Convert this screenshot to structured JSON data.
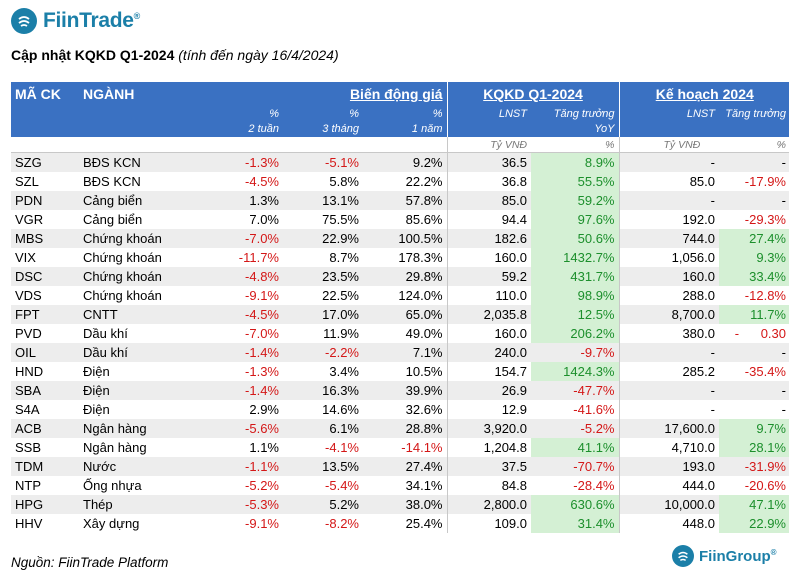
{
  "brand": {
    "name": "FiinTrade",
    "reg": "®",
    "footer_name": "FiinGroup",
    "footer_reg": "®"
  },
  "title": {
    "bold": "Cập nhật KQKD Q1-2024",
    "italic": "(tính đến ngày 16/4/2024)"
  },
  "header": {
    "ma_ck": "MÃ CK",
    "nganh": "NGÀNH",
    "group_price": "Biến động giá",
    "group_kqkd": "KQKD Q1-2024",
    "group_plan": "Kế hoạch 2024",
    "pct": "%",
    "w2": "2 tuần",
    "m3": "3 tháng",
    "y1": "1 năm",
    "lnst": "LNST",
    "tang_truong": "Tăng trưởng",
    "yoy": "YoY",
    "plan_lnst": "LNST",
    "plan_tt": "Tăng trưởng",
    "unit_vnd": "Tỷ VNĐ",
    "unit_pct": "%",
    "unit_vnd2": "Tỷ VNĐ",
    "unit_pct2": "%"
  },
  "rows": [
    {
      "ma": "SZG",
      "nganh": "BĐS KCN",
      "w2": "-1.3%",
      "m3": "-5.1%",
      "y1": "9.2%",
      "lnst": "36.5",
      "yoy": "8.9%",
      "plan": "-",
      "plan_tt": "-"
    },
    {
      "ma": "SZL",
      "nganh": "BĐS KCN",
      "w2": "-4.5%",
      "m3": "5.8%",
      "y1": "22.2%",
      "lnst": "36.8",
      "yoy": "55.5%",
      "plan": "85.0",
      "plan_tt": "-17.9%"
    },
    {
      "ma": "PDN",
      "nganh": "Cảng biển",
      "w2": "1.3%",
      "m3": "13.1%",
      "y1": "57.8%",
      "lnst": "85.0",
      "yoy": "59.2%",
      "plan": "-",
      "plan_tt": "-"
    },
    {
      "ma": "VGR",
      "nganh": "Cảng biển",
      "w2": "7.0%",
      "m3": "75.5%",
      "y1": "85.6%",
      "lnst": "94.4",
      "yoy": "97.6%",
      "plan": "192.0",
      "plan_tt": "-29.3%"
    },
    {
      "ma": "MBS",
      "nganh": "Chứng khoán",
      "w2": "-7.0%",
      "m3": "22.9%",
      "y1": "100.5%",
      "lnst": "182.6",
      "yoy": "50.6%",
      "plan": "744.0",
      "plan_tt": "27.4%"
    },
    {
      "ma": "VIX",
      "nganh": "Chứng khoán",
      "w2": "-11.7%",
      "m3": "8.7%",
      "y1": "178.3%",
      "lnst": "160.0",
      "yoy": "1432.7%",
      "plan": "1,056.0",
      "plan_tt": "9.3%"
    },
    {
      "ma": "DSC",
      "nganh": "Chứng khoán",
      "w2": "-4.8%",
      "m3": "23.5%",
      "y1": "29.8%",
      "lnst": "59.2",
      "yoy": "431.7%",
      "plan": "160.0",
      "plan_tt": "33.4%"
    },
    {
      "ma": "VDS",
      "nganh": "Chứng khoán",
      "w2": "-9.1%",
      "m3": "22.5%",
      "y1": "124.0%",
      "lnst": "110.0",
      "yoy": "98.9%",
      "plan": "288.0",
      "plan_tt": "-12.8%"
    },
    {
      "ma": "FPT",
      "nganh": "CNTT",
      "w2": "-4.5%",
      "m3": "17.0%",
      "y1": "65.0%",
      "lnst": "2,035.8",
      "yoy": "12.5%",
      "plan": "8,700.0",
      "plan_tt": "11.7%"
    },
    {
      "ma": "PVD",
      "nganh": "Dầu khí",
      "w2": "-7.0%",
      "m3": "11.9%",
      "y1": "49.0%",
      "lnst": "160.0",
      "yoy": "206.2%",
      "plan": "380.0",
      "plan_tt": "-      0.30"
    },
    {
      "ma": "OIL",
      "nganh": "Dầu khí",
      "w2": "-1.4%",
      "m3": "-2.2%",
      "y1": "7.1%",
      "lnst": "240.0",
      "yoy": "-9.7%",
      "plan": "-",
      "plan_tt": "-"
    },
    {
      "ma": "HND",
      "nganh": "Điện",
      "w2": "-1.3%",
      "m3": "3.4%",
      "y1": "10.5%",
      "lnst": "154.7",
      "yoy": "1424.3%",
      "plan": "285.2",
      "plan_tt": "-35.4%"
    },
    {
      "ma": "SBA",
      "nganh": "Điện",
      "w2": "-1.4%",
      "m3": "16.3%",
      "y1": "39.9%",
      "lnst": "26.9",
      "yoy": "-47.7%",
      "plan": "-",
      "plan_tt": "-"
    },
    {
      "ma": "S4A",
      "nganh": "Điện",
      "w2": "2.9%",
      "m3": "14.6%",
      "y1": "32.6%",
      "lnst": "12.9",
      "yoy": "-41.6%",
      "plan": "-",
      "plan_tt": "-"
    },
    {
      "ma": "ACB",
      "nganh": "Ngân hàng",
      "w2": "-5.6%",
      "m3": "6.1%",
      "y1": "28.8%",
      "lnst": "3,920.0",
      "yoy": "-5.2%",
      "plan": "17,600.0",
      "plan_tt": "9.7%"
    },
    {
      "ma": "SSB",
      "nganh": "Ngân hàng",
      "w2": "1.1%",
      "m3": "-4.1%",
      "y1": "-14.1%",
      "lnst": "1,204.8",
      "yoy": "41.1%",
      "plan": "4,710.0",
      "plan_tt": "28.1%"
    },
    {
      "ma": "TDM",
      "nganh": "Nước",
      "w2": "-1.1%",
      "m3": "13.5%",
      "y1": "27.4%",
      "lnst": "37.5",
      "yoy": "-70.7%",
      "plan": "193.0",
      "plan_tt": "-31.9%"
    },
    {
      "ma": "NTP",
      "nganh": "Ống nhựa",
      "w2": "-5.2%",
      "m3": "-5.4%",
      "y1": "34.1%",
      "lnst": "84.8",
      "yoy": "-28.4%",
      "plan": "444.0",
      "plan_tt": "-20.6%"
    },
    {
      "ma": "HPG",
      "nganh": "Thép",
      "w2": "-5.3%",
      "m3": "5.2%",
      "y1": "38.0%",
      "lnst": "2,800.0",
      "yoy": "630.6%",
      "plan": "10,000.0",
      "plan_tt": "47.1%"
    },
    {
      "ma": "HHV",
      "nganh": "Xây dựng",
      "w2": "-9.1%",
      "m3": "-8.2%",
      "y1": "25.4%",
      "lnst": "109.0",
      "yoy": "31.4%",
      "plan": "448.0",
      "plan_tt": "22.9%"
    }
  ],
  "footer": {
    "source": "Nguồn: FiinTrade Platform"
  },
  "colors": {
    "header_bg": "#3a71c2",
    "negative": "#d41717",
    "positive": "#1c8f2c",
    "positive_bg": "#d4f0d4",
    "brand": "#1b7fa8"
  }
}
